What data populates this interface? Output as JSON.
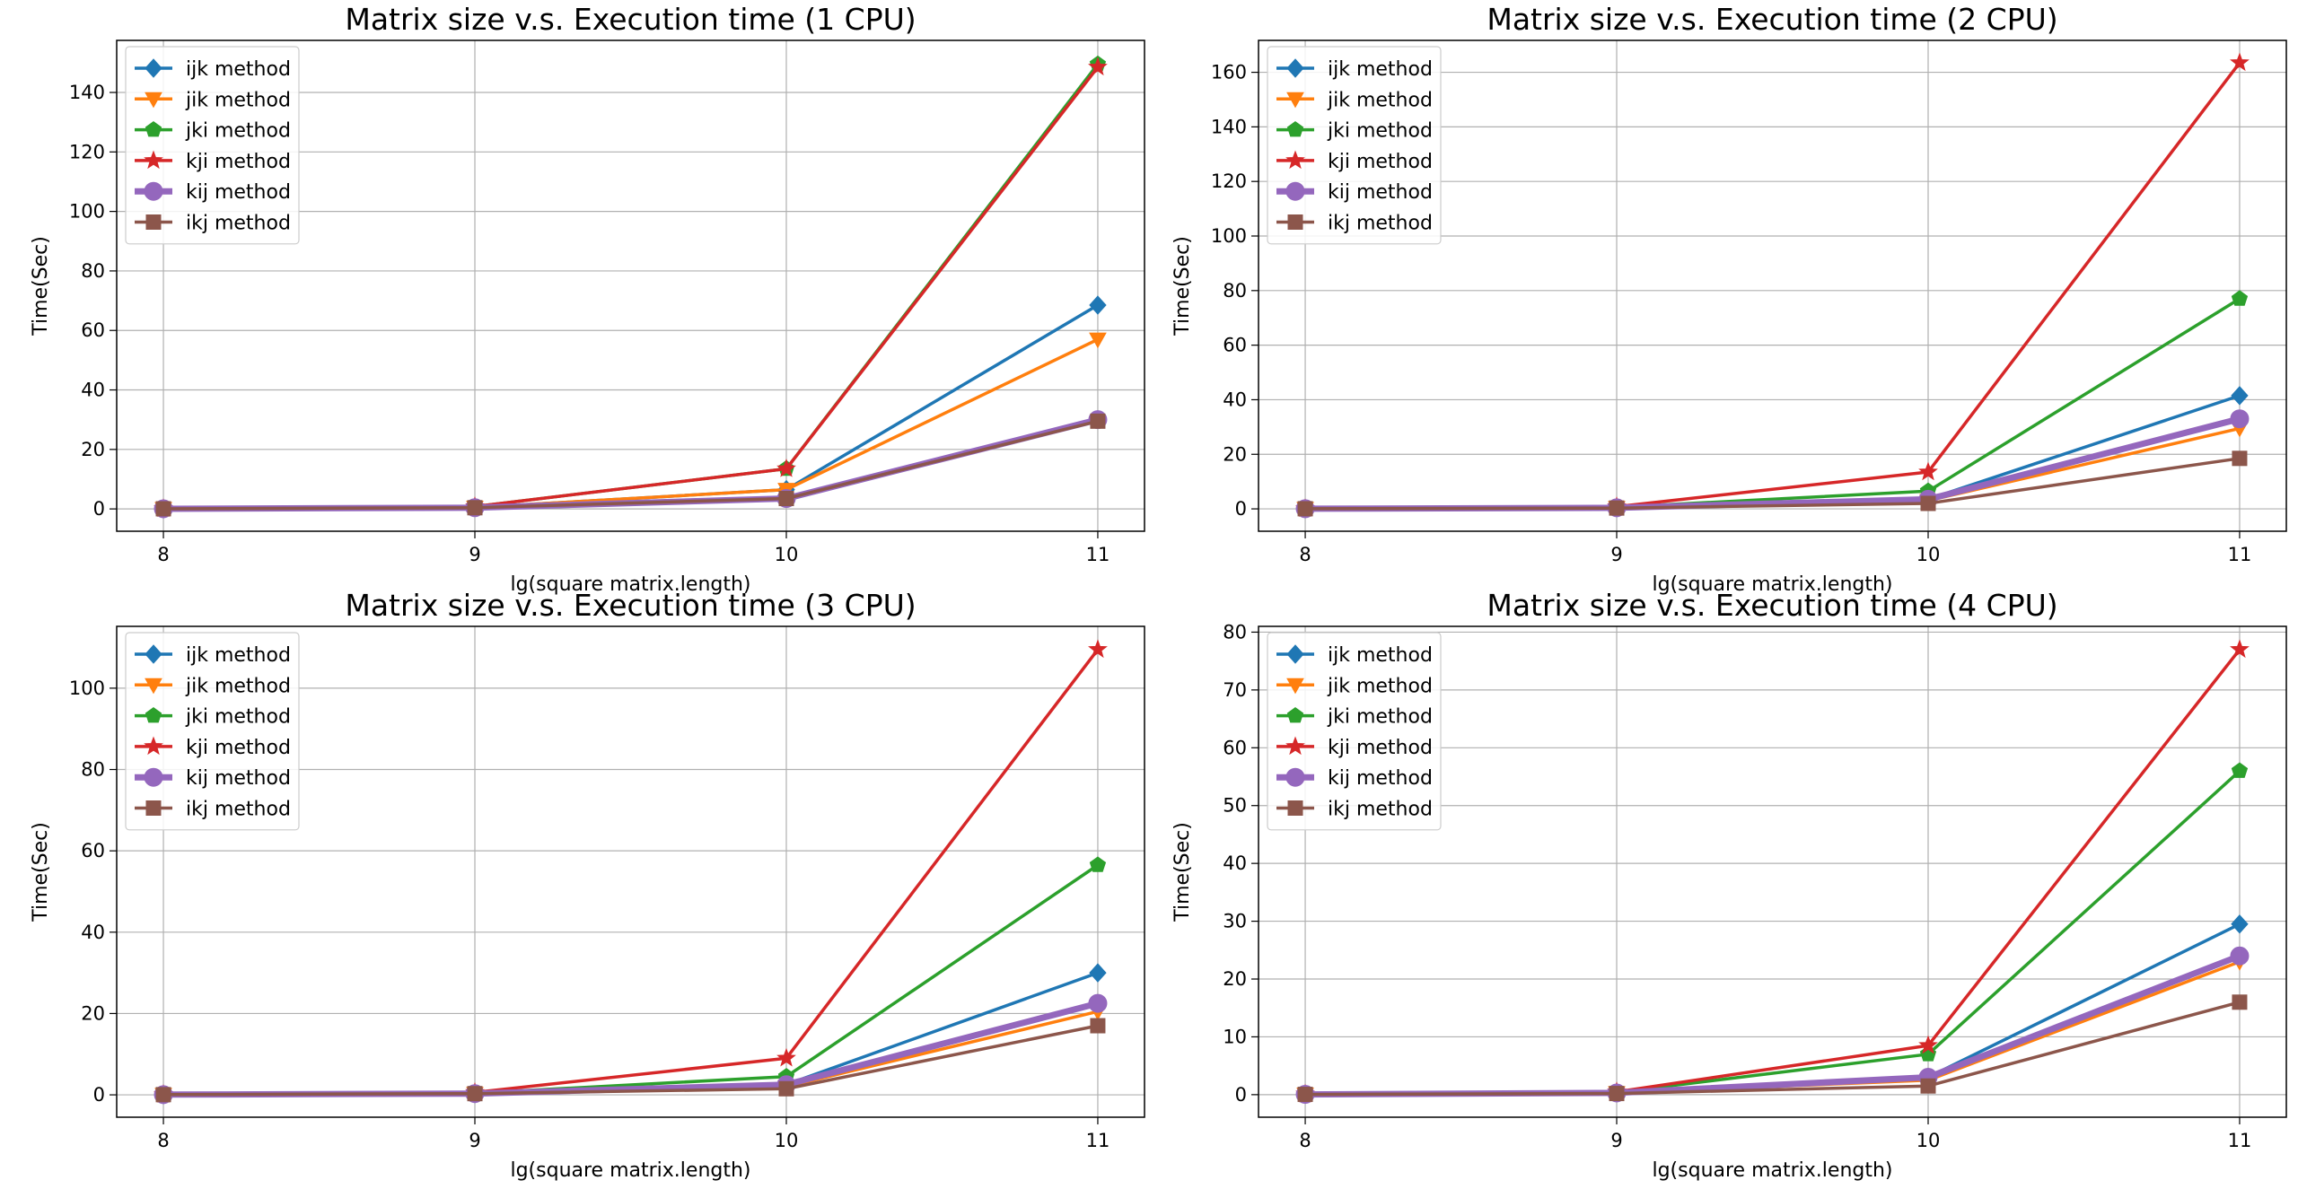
{
  "series_styles": [
    {
      "name": "ijk method",
      "color": "#1f77b4",
      "marker": "diamond",
      "width": 3.5
    },
    {
      "name": "jik method",
      "color": "#ff7f0e",
      "marker": "triangle-down",
      "width": 3.5
    },
    {
      "name": "jki method",
      "color": "#2ca02c",
      "marker": "pentagon",
      "width": 3.5
    },
    {
      "name": "kji method",
      "color": "#d62728",
      "marker": "star",
      "width": 3.5
    },
    {
      "name": "kij method",
      "color": "#9467bd",
      "marker": "circle",
      "width": 7
    },
    {
      "name": "ikj method",
      "color": "#8c564b",
      "marker": "square",
      "width": 3.5
    }
  ],
  "chart_data": [
    {
      "type": "line",
      "title": "Matrix size v.s. Execution time (1 CPU)",
      "xlabel": "lg(square matrix.length)",
      "ylabel": "Time(Sec)",
      "x": [
        8,
        9,
        10,
        11
      ],
      "xlim": [
        7.85,
        11.15
      ],
      "ylim": [
        -7.5,
        157.5
      ],
      "yticks": [
        0,
        20,
        40,
        60,
        80,
        100,
        120,
        140
      ],
      "grid": true,
      "legend": "top-left",
      "series": [
        {
          "name": "ijk method",
          "values": [
            0.05,
            0.5,
            6.5,
            68.5
          ]
        },
        {
          "name": "jik method",
          "values": [
            0.05,
            0.5,
            6.5,
            57
          ]
        },
        {
          "name": "jki method",
          "values": [
            0.1,
            0.8,
            13.5,
            149.5
          ]
        },
        {
          "name": "kji method",
          "values": [
            0.1,
            0.8,
            13.5,
            148.5
          ]
        },
        {
          "name": "kij method",
          "values": [
            0.05,
            0.4,
            3.5,
            30
          ]
        },
        {
          "name": "ikj method",
          "values": [
            0.05,
            0.4,
            3.5,
            29.5
          ]
        }
      ]
    },
    {
      "type": "line",
      "title": "Matrix size v.s. Execution time (2 CPU)",
      "xlabel": "lg(square matrix.length)",
      "ylabel": "Time(Sec)",
      "x": [
        8,
        9,
        10,
        11
      ],
      "xlim": [
        7.85,
        11.15
      ],
      "ylim": [
        -8.2,
        171.7
      ],
      "yticks": [
        0,
        20,
        40,
        60,
        80,
        100,
        120,
        140,
        160
      ],
      "grid": true,
      "legend": "top-left",
      "series": [
        {
          "name": "ijk method",
          "values": [
            0.05,
            0.4,
            3.5,
            41.5
          ]
        },
        {
          "name": "jik method",
          "values": [
            0.05,
            0.4,
            3,
            29.5
          ]
        },
        {
          "name": "jki method",
          "values": [
            0.05,
            0.6,
            6.5,
            77
          ]
        },
        {
          "name": "kji method",
          "values": [
            0.1,
            0.8,
            13.5,
            163.5
          ]
        },
        {
          "name": "kij method",
          "values": [
            0.05,
            0.4,
            3.5,
            33
          ]
        },
        {
          "name": "ikj method",
          "values": [
            0.05,
            0.3,
            2,
            18.5
          ]
        }
      ]
    },
    {
      "type": "line",
      "title": "Matrix size v.s. Execution time (3 CPU)",
      "xlabel": "lg(square matrix.length)",
      "ylabel": "Time(Sec)",
      "x": [
        8,
        9,
        10,
        11
      ],
      "xlim": [
        7.85,
        11.15
      ],
      "ylim": [
        -5.5,
        115.2
      ],
      "yticks": [
        0,
        20,
        40,
        60,
        80,
        100
      ],
      "grid": true,
      "legend": "top-left",
      "series": [
        {
          "name": "ijk method",
          "values": [
            0.05,
            0.3,
            2.5,
            30
          ]
        },
        {
          "name": "jik method",
          "values": [
            0.05,
            0.3,
            2,
            20.5
          ]
        },
        {
          "name": "jki method",
          "values": [
            0.05,
            0.4,
            4.5,
            56.5
          ]
        },
        {
          "name": "kji method",
          "values": [
            0.1,
            0.6,
            9,
            109.5
          ]
        },
        {
          "name": "kij method",
          "values": [
            0.05,
            0.3,
            2.5,
            22.5
          ]
        },
        {
          "name": "ikj method",
          "values": [
            0.05,
            0.3,
            1.5,
            17
          ]
        }
      ]
    },
    {
      "type": "line",
      "title": "Matrix size v.s. Execution time (4 CPU)",
      "xlabel": "lg(square matrix.length)",
      "ylabel": "Time(Sec)",
      "x": [
        8,
        9,
        10,
        11
      ],
      "xlim": [
        7.85,
        11.15
      ],
      "ylim": [
        -3.9,
        81
      ],
      "yticks": [
        0,
        10,
        20,
        30,
        40,
        50,
        60,
        70,
        80
      ],
      "grid": true,
      "legend": "top-left",
      "series": [
        {
          "name": "ijk method",
          "values": [
            0.05,
            0.3,
            3,
            29.5
          ]
        },
        {
          "name": "jik method",
          "values": [
            0.05,
            0.3,
            2.5,
            23
          ]
        },
        {
          "name": "jki method",
          "values": [
            0.05,
            0.4,
            7,
            56
          ]
        },
        {
          "name": "kji method",
          "values": [
            0.1,
            0.5,
            8.5,
            77
          ]
        },
        {
          "name": "kij method",
          "values": [
            0.05,
            0.3,
            3,
            24
          ]
        },
        {
          "name": "ikj method",
          "values": [
            0.05,
            0.2,
            1.5,
            16
          ]
        }
      ]
    }
  ]
}
